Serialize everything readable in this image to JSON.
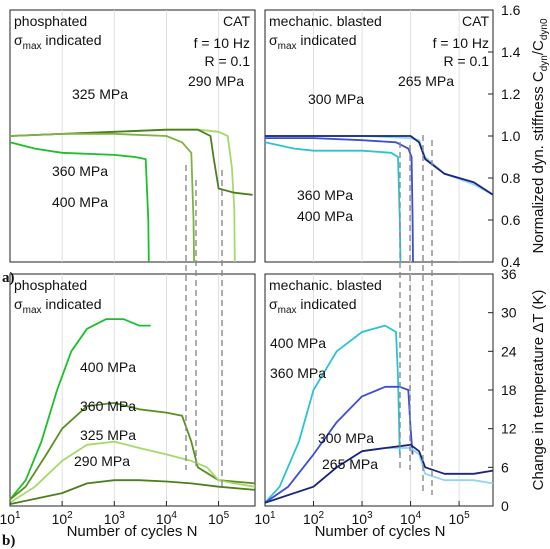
{
  "chart_data": [
    {
      "type": "line",
      "panel": "a-left",
      "texts": {
        "top_left_1": "phosphated",
        "top_left_2_main": "σ",
        "top_left_2_sub": "max",
        "top_left_2_rest": " indicated",
        "cat": "CAT",
        "freq": "f = 10 Hz",
        "ratio": "R = 0.1"
      },
      "xscale": "log",
      "xlim": [
        10,
        500000
      ],
      "ylim": [
        0.4,
        1.6
      ],
      "series": [
        {
          "name": "325 MPa",
          "color": "#a6d96a",
          "points": [
            [
              10,
              1.0
            ],
            [
              100,
              1.01
            ],
            [
              1000,
              1.02
            ],
            [
              10000,
              1.03
            ],
            [
              40000,
              1.03
            ],
            [
              100000,
              1.02
            ],
            [
              150000,
              1.0
            ],
            [
              180000,
              0.85
            ],
            [
              200000,
              0.65
            ],
            [
              205000,
              0.4
            ]
          ]
        },
        {
          "name": "290 MPa",
          "color": "#4d7f1f",
          "points": [
            [
              10,
              1.0
            ],
            [
              100,
              1.01
            ],
            [
              1000,
              1.02
            ],
            [
              10000,
              1.03
            ],
            [
              40000,
              1.03
            ],
            [
              70000,
              1.0
            ],
            [
              80000,
              0.9
            ],
            [
              100000,
              0.75
            ],
            [
              200000,
              0.73
            ],
            [
              450000,
              0.72
            ]
          ]
        },
        {
          "name": "360 MPa",
          "color": "#7fb241",
          "points": [
            [
              10,
              1.0
            ],
            [
              100,
              1.01
            ],
            [
              1000,
              1.01
            ],
            [
              10000,
              1.0
            ],
            [
              20000,
              0.97
            ],
            [
              30000,
              0.92
            ],
            [
              33000,
              0.6
            ],
            [
              34000,
              0.4
            ]
          ]
        },
        {
          "name": "400 MPa",
          "color": "#1dbf2a",
          "points": [
            [
              10,
              0.97
            ],
            [
              30,
              0.94
            ],
            [
              100,
              0.92
            ],
            [
              1000,
              0.91
            ],
            [
              2500,
              0.9
            ],
            [
              4000,
              0.89
            ],
            [
              4500,
              0.6
            ],
            [
              4600,
              0.4
            ]
          ]
        }
      ],
      "labels": [
        "325 MPa",
        "290 MPa",
        "360 MPa",
        "400 MPa"
      ]
    },
    {
      "type": "line",
      "panel": "a-right",
      "texts": {
        "top_left_1": "mechanic. blasted",
        "top_left_2_main": "σ",
        "top_left_2_sub": "max",
        "top_left_2_rest": " indicated",
        "cat": "CAT",
        "freq": "f = 10 Hz",
        "ratio": "R = 0.1"
      },
      "yaxis": {
        "label_main": "Normalized dyn. stiffness C",
        "label_sub1": "dyn",
        "label_mid": "/C",
        "label_sub2": "dyn0",
        "ticks": [
          "0.4",
          "0.6",
          "0.8",
          "1.0",
          "1.2",
          "1.4",
          "1.6"
        ]
      },
      "xscale": "log",
      "xlim": [
        10,
        500000
      ],
      "ylim": [
        0.4,
        1.6
      ],
      "series": [
        {
          "name": "300 MPa",
          "color": "#8fd6f0",
          "points": [
            [
              10,
              1.0
            ],
            [
              100,
              1.0
            ],
            [
              1000,
              1.0
            ],
            [
              10000,
              0.99
            ],
            [
              15000,
              0.98
            ],
            [
              20000,
              0.9
            ],
            [
              50000,
              0.82
            ],
            [
              200000,
              0.77
            ],
            [
              500000,
              0.72
            ]
          ]
        },
        {
          "name": "265 MPa",
          "color": "#1a237e",
          "points": [
            [
              10,
              1.0
            ],
            [
              100,
              1.0
            ],
            [
              1000,
              1.0
            ],
            [
              10000,
              1.0
            ],
            [
              15000,
              0.97
            ],
            [
              20000,
              0.89
            ],
            [
              50000,
              0.82
            ],
            [
              200000,
              0.78
            ],
            [
              500000,
              0.72
            ]
          ]
        },
        {
          "name": "360 MPa",
          "color": "#3b4fd1",
          "points": [
            [
              10,
              0.99
            ],
            [
              100,
              0.99
            ],
            [
              1000,
              0.98
            ],
            [
              5000,
              0.97
            ],
            [
              9000,
              0.94
            ],
            [
              10500,
              0.9
            ],
            [
              11000,
              0.6
            ],
            [
              11200,
              0.4
            ]
          ]
        },
        {
          "name": "400 MPa",
          "color": "#2ac4d0",
          "points": [
            [
              10,
              0.97
            ],
            [
              40,
              0.94
            ],
            [
              100,
              0.93
            ],
            [
              1000,
              0.93
            ],
            [
              4000,
              0.92
            ],
            [
              5500,
              0.9
            ],
            [
              6000,
              0.6
            ],
            [
              6200,
              0.4
            ]
          ]
        }
      ],
      "labels": [
        "300 MPa",
        "265 MPa",
        "360 MPa",
        "400 MPa"
      ]
    },
    {
      "type": "line",
      "panel": "b-left",
      "texts": {
        "top_left_1": "phosphated",
        "top_left_2_main": "σ",
        "top_left_2_sub": "max",
        "top_left_2_rest": " indicated"
      },
      "xaxis": {
        "label": "Number of cycles N",
        "ticks": [
          "10",
          "10",
          "10",
          "10",
          "10"
        ],
        "tick_exp": [
          "1",
          "2",
          "3",
          "4",
          "5"
        ]
      },
      "xscale": "log",
      "xlim": [
        10,
        500000
      ],
      "ylim": [
        0,
        36
      ],
      "series": [
        {
          "name": "400 MPa",
          "color": "#1dbf2a",
          "points": [
            [
              10,
              1
            ],
            [
              20,
              4
            ],
            [
              40,
              10
            ],
            [
              80,
              18
            ],
            [
              150,
              24
            ],
            [
              300,
              27.5
            ],
            [
              700,
              29
            ],
            [
              1500,
              29
            ],
            [
              3000,
              28
            ],
            [
              5000,
              28
            ]
          ]
        },
        {
          "name": "360 MPa",
          "color": "#5a8f24",
          "points": [
            [
              10,
              1
            ],
            [
              20,
              3
            ],
            [
              50,
              8
            ],
            [
              100,
              12
            ],
            [
              300,
              15.5
            ],
            [
              1000,
              16
            ],
            [
              3000,
              15
            ],
            [
              10000,
              14.5
            ],
            [
              20000,
              14
            ],
            [
              30000,
              10
            ],
            [
              40000,
              6
            ],
            [
              100000,
              4
            ],
            [
              500000,
              3.5
            ]
          ]
        },
        {
          "name": "325 MPa",
          "color": "#a6d96a",
          "points": [
            [
              10,
              0.5
            ],
            [
              30,
              3
            ],
            [
              100,
              7
            ],
            [
              300,
              9.5
            ],
            [
              1000,
              10
            ],
            [
              3000,
              9
            ],
            [
              10000,
              8
            ],
            [
              30000,
              7
            ],
            [
              60000,
              6
            ],
            [
              100000,
              4
            ],
            [
              200000,
              3.5
            ],
            [
              500000,
              3
            ]
          ]
        },
        {
          "name": "290 MPa",
          "color": "#4d7f1f",
          "points": [
            [
              10,
              0.3
            ],
            [
              100,
              2
            ],
            [
              300,
              3.5
            ],
            [
              1000,
              4
            ],
            [
              3000,
              4
            ],
            [
              10000,
              3.8
            ],
            [
              30000,
              3.5
            ],
            [
              100000,
              3
            ],
            [
              500000,
              2.5
            ]
          ]
        }
      ],
      "labels": [
        "400 MPa",
        "360 MPa",
        "325 MPa",
        "290 MPa"
      ]
    },
    {
      "type": "line",
      "panel": "b-right",
      "texts": {
        "top_left_1": "mechanic. blasted",
        "top_left_2_main": "σ",
        "top_left_2_sub": "max",
        "top_left_2_rest": " indicated"
      },
      "xaxis": {
        "label": "Number of cycles N",
        "ticks": [
          "10",
          "10",
          "10",
          "10",
          "10"
        ],
        "tick_exp": [
          "1",
          "2",
          "3",
          "4",
          "5"
        ]
      },
      "yaxis": {
        "label_main": "Change in temperature ΔT (K)",
        "ticks": [
          "0",
          "6",
          "12",
          "18",
          "24",
          "30",
          "36"
        ]
      },
      "xscale": "log",
      "xlim": [
        10,
        500000
      ],
      "ylim": [
        0,
        36
      ],
      "series": [
        {
          "name": "400 MPa",
          "color": "#2ac4d0",
          "points": [
            [
              10,
              0.5
            ],
            [
              20,
              3
            ],
            [
              50,
              10
            ],
            [
              100,
              18
            ],
            [
              300,
              24
            ],
            [
              1000,
              27
            ],
            [
              3000,
              28
            ],
            [
              5000,
              27
            ],
            [
              5500,
              20
            ],
            [
              6000,
              8
            ]
          ]
        },
        {
          "name": "360 MPa",
          "color": "#3b4fd1",
          "points": [
            [
              10,
              0.5
            ],
            [
              30,
              3
            ],
            [
              100,
              8
            ],
            [
              300,
              13
            ],
            [
              1000,
              17
            ],
            [
              3000,
              18.5
            ],
            [
              6000,
              18.5
            ],
            [
              9000,
              18
            ],
            [
              10000,
              12
            ],
            [
              11000,
              8
            ]
          ]
        },
        {
          "name": "300 MPa",
          "color": "#8fd6f0",
          "points": [
            [
              10,
              0.5
            ],
            [
              100,
              3
            ],
            [
              300,
              6
            ],
            [
              1000,
              8.5
            ],
            [
              3000,
              9
            ],
            [
              10000,
              9
            ],
            [
              15000,
              8
            ],
            [
              20000,
              5
            ],
            [
              50000,
              4
            ],
            [
              200000,
              4
            ],
            [
              500000,
              3.5
            ]
          ]
        },
        {
          "name": "265 MPa",
          "color": "#1a237e",
          "points": [
            [
              10,
              0.5
            ],
            [
              100,
              3
            ],
            [
              300,
              6
            ],
            [
              1000,
              8.5
            ],
            [
              3000,
              9
            ],
            [
              10000,
              9.5
            ],
            [
              15000,
              8.5
            ],
            [
              20000,
              6
            ],
            [
              50000,
              5
            ],
            [
              200000,
              5
            ],
            [
              500000,
              5.5
            ]
          ]
        }
      ],
      "labels": [
        "300 MPa",
        "265 MPa"
      ],
      "labels_extra": [
        "400 MPa",
        "360 MPa"
      ]
    }
  ],
  "panel_letters": {
    "a": "a)",
    "b": "b)"
  },
  "palette": {
    "dash": "#8a8a8a"
  }
}
